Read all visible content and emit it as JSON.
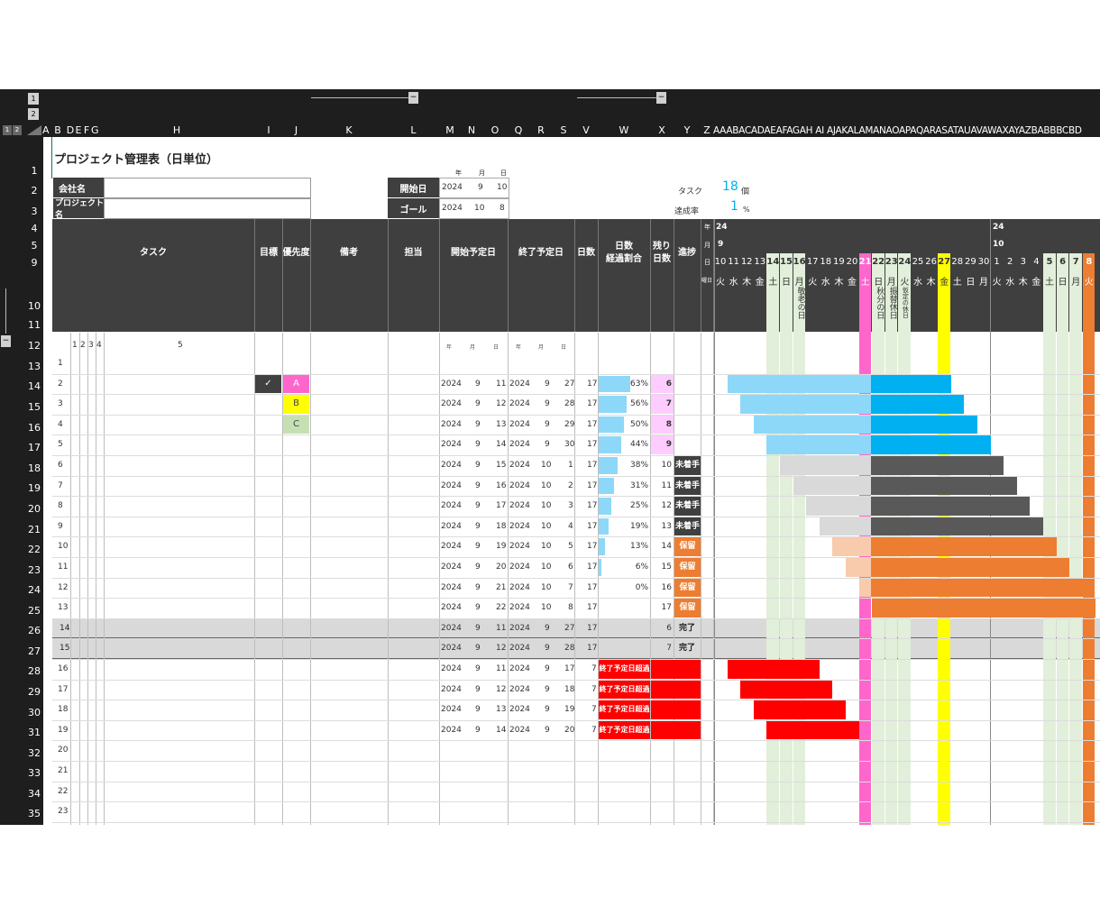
{
  "title": "プロジェクト管理表（日単位）",
  "outline_levels": [
    "1",
    "2"
  ],
  "columns": [
    "A",
    "B",
    "D",
    "E",
    "F",
    "G",
    "H",
    "I",
    "J",
    "K",
    "L",
    "M",
    "N",
    "O",
    "Q",
    "R",
    "S",
    "V",
    "W",
    "X",
    "Y",
    "Z"
  ],
  "columns_tail": "AAABACADAEAFAGAH AI AJAKALAMANAOAPAQARASATAUAVAWAXAYAZBABBBCBD",
  "row_numbers": [
    "1",
    "2",
    "3",
    "4",
    "5",
    "9",
    "10",
    "11",
    "12",
    "13",
    "14",
    "15",
    "16",
    "17",
    "18",
    "19",
    "20",
    "21",
    "22",
    "23",
    "24",
    "25",
    "26",
    "27",
    "28",
    "29",
    "30",
    "31",
    "32",
    "33",
    "34",
    "35"
  ],
  "info": {
    "company_label": "会社名",
    "project_label": "プロジェクト名",
    "start_label": "開始日",
    "goal_label": "ゴール",
    "ymd": [
      "年",
      "月",
      "日"
    ],
    "start": [
      "2024",
      "9",
      "10"
    ],
    "goal": [
      "2024",
      "10",
      "8"
    ],
    "task_label": "タスク",
    "task_count": "18",
    "task_unit": "個",
    "rate_label": "達成率",
    "rate_value": "1",
    "rate_unit": "%"
  },
  "headers": {
    "task": "タスク",
    "goal": "目標",
    "priority": "優先度",
    "note": "備考",
    "owner": "担当",
    "start": "開始予定日",
    "end": "終了予定日",
    "days": "日数",
    "elapsed": "日数\n経過割合",
    "remaining": "残り\n日数",
    "progress": "進捗",
    "cal_year": "年",
    "cal_month": "月",
    "cal_day": "日",
    "cal_weekday": "曜日",
    "levels": [
      "1",
      "2",
      "3",
      "4",
      "5"
    ]
  },
  "calendar": {
    "year1": "24",
    "month1": "9",
    "year2": "24",
    "month2": "10",
    "days": [
      "10",
      "11",
      "12",
      "13",
      "14",
      "15",
      "16",
      "17",
      "18",
      "19",
      "20",
      "21",
      "22",
      "23",
      "24",
      "25",
      "26",
      "27",
      "28",
      "29",
      "30",
      "1",
      "2",
      "3",
      "4",
      "5",
      "6",
      "7",
      "8"
    ],
    "weekdays": [
      "火",
      "水",
      "木",
      "金",
      "土",
      "日",
      "月",
      "火",
      "水",
      "木",
      "金",
      "土",
      "日",
      "月",
      "火",
      "水",
      "木",
      "金",
      "土",
      "日",
      "月",
      "火",
      "水",
      "木",
      "金",
      "土",
      "日",
      "月",
      "火"
    ],
    "holidays": [
      {
        "day": "16",
        "text": "敬老の日"
      },
      {
        "day": "22",
        "text": "秋分の日"
      },
      {
        "day": "23",
        "text": "振替休日"
      },
      {
        "day": "24",
        "text": "仮定の休日"
      }
    ]
  },
  "tasks": [
    {
      "n": "1"
    },
    {
      "n": "2",
      "check": "✓",
      "priority": "A",
      "s": [
        "2024",
        "9",
        "11"
      ],
      "e": [
        "2024",
        "9",
        "27"
      ],
      "days": "17",
      "pct": "63%",
      "pct_v": 0.63,
      "rem": "6"
    },
    {
      "n": "3",
      "priority": "B",
      "s": [
        "2024",
        "9",
        "12"
      ],
      "e": [
        "2024",
        "9",
        "28"
      ],
      "days": "17",
      "pct": "56%",
      "pct_v": 0.56,
      "rem": "7"
    },
    {
      "n": "4",
      "priority": "C",
      "s": [
        "2024",
        "9",
        "13"
      ],
      "e": [
        "2024",
        "9",
        "29"
      ],
      "days": "17",
      "pct": "50%",
      "pct_v": 0.5,
      "rem": "8"
    },
    {
      "n": "5",
      "s": [
        "2024",
        "9",
        "14"
      ],
      "e": [
        "2024",
        "9",
        "30"
      ],
      "days": "17",
      "pct": "44%",
      "pct_v": 0.44,
      "rem": "9"
    },
    {
      "n": "6",
      "s": [
        "2024",
        "9",
        "15"
      ],
      "e": [
        "2024",
        "10",
        "1"
      ],
      "days": "17",
      "pct": "38%",
      "pct_v": 0.38,
      "rem": "10",
      "status": "未着手"
    },
    {
      "n": "7",
      "s": [
        "2024",
        "9",
        "16"
      ],
      "e": [
        "2024",
        "10",
        "2"
      ],
      "days": "17",
      "pct": "31%",
      "pct_v": 0.31,
      "rem": "11",
      "status": "未着手"
    },
    {
      "n": "8",
      "s": [
        "2024",
        "9",
        "17"
      ],
      "e": [
        "2024",
        "10",
        "3"
      ],
      "days": "17",
      "pct": "25%",
      "pct_v": 0.25,
      "rem": "12",
      "status": "未着手"
    },
    {
      "n": "9",
      "s": [
        "2024",
        "9",
        "18"
      ],
      "e": [
        "2024",
        "10",
        "4"
      ],
      "days": "17",
      "pct": "19%",
      "pct_v": 0.19,
      "rem": "13",
      "status": "未着手"
    },
    {
      "n": "10",
      "s": [
        "2024",
        "9",
        "19"
      ],
      "e": [
        "2024",
        "10",
        "5"
      ],
      "days": "17",
      "pct": "13%",
      "pct_v": 0.13,
      "rem": "14",
      "status": "保留"
    },
    {
      "n": "11",
      "s": [
        "2024",
        "9",
        "20"
      ],
      "e": [
        "2024",
        "10",
        "6"
      ],
      "days": "17",
      "pct": "6%",
      "pct_v": 0.06,
      "rem": "15",
      "status": "保留"
    },
    {
      "n": "12",
      "s": [
        "2024",
        "9",
        "21"
      ],
      "e": [
        "2024",
        "10",
        "7"
      ],
      "days": "17",
      "pct": "0%",
      "pct_v": 0,
      "rem": "16",
      "status": "保留"
    },
    {
      "n": "13",
      "s": [
        "2024",
        "9",
        "22"
      ],
      "e": [
        "2024",
        "10",
        "8"
      ],
      "days": "17",
      "pct": "",
      "pct_v": 0,
      "rem": "17",
      "status": "保留"
    },
    {
      "n": "14",
      "s": [
        "2024",
        "9",
        "11"
      ],
      "e": [
        "2024",
        "9",
        "27"
      ],
      "days": "17",
      "rem": "6",
      "status": "完了",
      "done": true
    },
    {
      "n": "15",
      "s": [
        "2024",
        "9",
        "12"
      ],
      "e": [
        "2024",
        "9",
        "28"
      ],
      "days": "17",
      "rem": "7",
      "status": "完了",
      "done": true
    },
    {
      "n": "16",
      "s": [
        "2024",
        "9",
        "11"
      ],
      "e": [
        "2024",
        "9",
        "17"
      ],
      "days": "7",
      "overdue": "終了予定日超過"
    },
    {
      "n": "17",
      "s": [
        "2024",
        "9",
        "12"
      ],
      "e": [
        "2024",
        "9",
        "18"
      ],
      "days": "7",
      "overdue": "終了予定日超過"
    },
    {
      "n": "18",
      "s": [
        "2024",
        "9",
        "13"
      ],
      "e": [
        "2024",
        "9",
        "19"
      ],
      "days": "7",
      "overdue": "終了予定日超過"
    },
    {
      "n": "19",
      "s": [
        "2024",
        "9",
        "14"
      ],
      "e": [
        "2024",
        "9",
        "20"
      ],
      "days": "7",
      "overdue": "終了予定日超過"
    },
    {
      "n": "20"
    },
    {
      "n": "21"
    },
    {
      "n": "22"
    },
    {
      "n": "23"
    }
  ],
  "colors": {
    "header_bg": "#3f3f3f",
    "priority_a": "#ff66cc",
    "priority_b": "#ffff00",
    "priority_c": "#c6e0b4",
    "status_not_started": "#404040",
    "status_hold": "#ed7d31",
    "overdue": "#ff0000",
    "elapsed_bar": "#8dd8f8",
    "remaining_bg": "#ffccff",
    "done_row": "#d9d9d9",
    "weekend": "#e2efda",
    "today": "#ff66cc",
    "friday_mark": "#ffff00",
    "end_mark": "#ed7d31"
  }
}
